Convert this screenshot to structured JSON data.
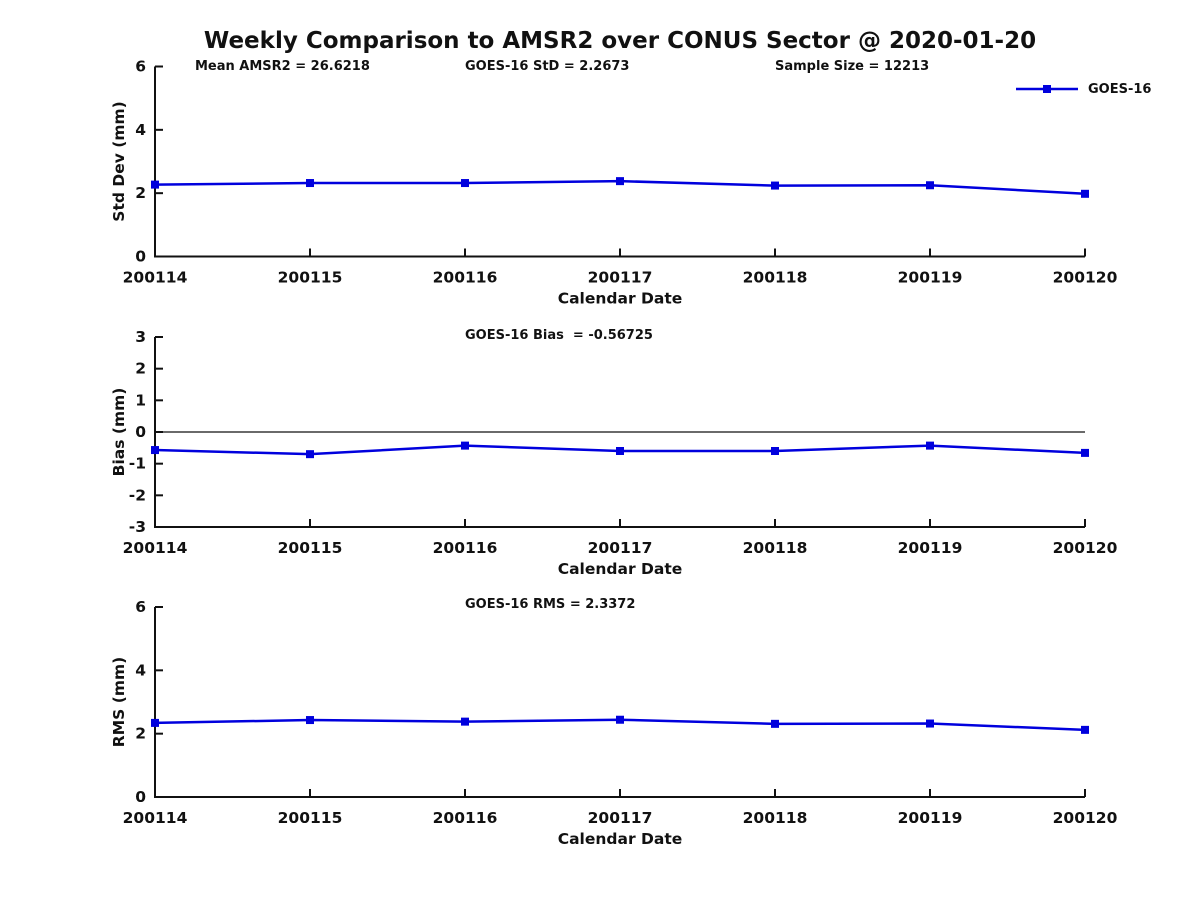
{
  "page": {
    "title": "Weekly Comparison to AMSR2 over CONUS Sector @ 2020-01-20"
  },
  "legend": {
    "label": "GOES-16",
    "color": "#0000dd",
    "position": "top-right",
    "marker": "filled-square"
  },
  "chart_data": [
    {
      "type": "line",
      "x_categories": [
        "200114",
        "200115",
        "200116",
        "200117",
        "200118",
        "200119",
        "200120"
      ],
      "series": [
        {
          "name": "GOES-16",
          "color": "#0000dd",
          "values": [
            2.27,
            2.32,
            2.32,
            2.38,
            2.24,
            2.25,
            1.98
          ]
        }
      ],
      "xlabel": "Calendar Date",
      "ylabel": "Std Dev (mm)",
      "ylim": [
        0,
        6
      ],
      "yticks": [
        0,
        2,
        4,
        6
      ],
      "zero_line": false,
      "grid": false,
      "annotations": [
        "Mean AMSR2 = 26.6218",
        "GOES-16 StD = 2.2673",
        "Sample Size = 12213"
      ]
    },
    {
      "type": "line",
      "x_categories": [
        "200114",
        "200115",
        "200116",
        "200117",
        "200118",
        "200119",
        "200120"
      ],
      "series": [
        {
          "name": "GOES-16",
          "color": "#0000dd",
          "values": [
            -0.57,
            -0.7,
            -0.43,
            -0.6,
            -0.6,
            -0.43,
            -0.66
          ]
        }
      ],
      "xlabel": "Calendar Date",
      "ylabel": "Bias (mm)",
      "ylim": [
        -3,
        3
      ],
      "yticks": [
        -3,
        -2,
        -1,
        0,
        1,
        2,
        3
      ],
      "zero_line": true,
      "grid": false,
      "annotations": [
        "GOES-16 Bias  = -0.56725"
      ]
    },
    {
      "type": "line",
      "x_categories": [
        "200114",
        "200115",
        "200116",
        "200117",
        "200118",
        "200119",
        "200120"
      ],
      "series": [
        {
          "name": "GOES-16",
          "color": "#0000dd",
          "values": [
            2.34,
            2.43,
            2.38,
            2.44,
            2.31,
            2.32,
            2.12
          ]
        }
      ],
      "xlabel": "Calendar Date",
      "ylabel": "RMS (mm)",
      "ylim": [
        0,
        6
      ],
      "yticks": [
        0,
        2,
        4,
        6
      ],
      "zero_line": false,
      "grid": false,
      "annotations": [
        "GOES-16 RMS = 2.3372"
      ]
    }
  ]
}
